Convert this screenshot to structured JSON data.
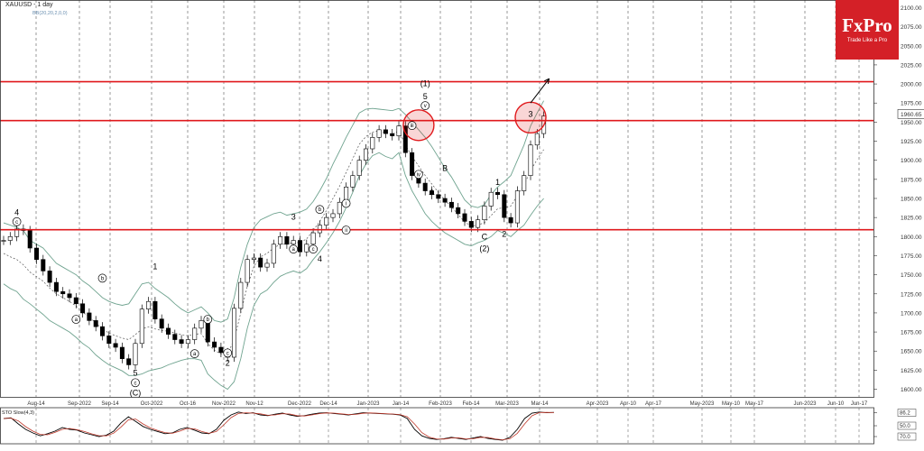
{
  "header": {
    "title": "XAUUSD - 1 day",
    "indicator": "BB(20,20,2,0,0)"
  },
  "brand": {
    "name": "FxPro",
    "tagline": "Trade Like a Pro",
    "color": "#d42027"
  },
  "stochastic": {
    "label": "STO Slow(4,3)",
    "ticks": [
      "86.2",
      "50.0",
      "70.0"
    ]
  },
  "colors": {
    "resistance": "#e0191c",
    "bollinger": "#6fa38f",
    "candle": "#000000",
    "circle": "#e0191c"
  },
  "chart_data": {
    "type": "line",
    "title": "XAUUSD - 1 day",
    "xlabel": "",
    "ylabel": "",
    "ylim": [
      1590,
      2110
    ],
    "price_ticks": [
      2100,
      2075,
      2050,
      2025,
      2000,
      1975,
      1950,
      1925,
      1900,
      1875,
      1850,
      1825,
      1800,
      1775,
      1750,
      1725,
      1700,
      1675,
      1650,
      1625,
      1600
    ],
    "current_price_label": "1960.65",
    "current_price": 1960.65,
    "x_ticks": [
      "Aug-14",
      "Sep-2022",
      "Sep-14",
      "Oct-2022",
      "Oct-16",
      "Nov-2022",
      "Nov-12",
      "Dec-2022",
      "Dec-14",
      "Jan-2023",
      "Jan-14",
      "Feb-2023",
      "Feb-14",
      "Mar-2023",
      "Mar-14",
      "Apr-2023",
      "Apr-10",
      "Apr-17",
      "May-2023",
      "May-10",
      "May-17",
      "Jun-2023",
      "Jun-10",
      "Jun-17"
    ],
    "horizontal_levels": [
      2003,
      1952,
      1809
    ],
    "price_series": [
      1795,
      1800,
      1810,
      1808,
      1785,
      1770,
      1755,
      1740,
      1728,
      1725,
      1720,
      1712,
      1700,
      1690,
      1682,
      1670,
      1660,
      1655,
      1640,
      1632,
      1660,
      1705,
      1715,
      1692,
      1680,
      1672,
      1665,
      1660,
      1665,
      1680,
      1690,
      1662,
      1655,
      1648,
      1642,
      1706,
      1740,
      1770,
      1772,
      1760,
      1765,
      1790,
      1800,
      1790,
      1795,
      1780,
      1790,
      1805,
      1815,
      1825,
      1830,
      1845,
      1865,
      1880,
      1900,
      1915,
      1930,
      1940,
      1935,
      1932,
      1945,
      1910,
      1880,
      1870,
      1860,
      1855,
      1850,
      1845,
      1838,
      1830,
      1820,
      1812,
      1822,
      1840,
      1858,
      1855,
      1825,
      1818,
      1860,
      1880,
      1920,
      1935,
      1958
    ],
    "bollinger_upper": [
      1818,
      1815,
      1812,
      1808,
      1795,
      1790,
      1785,
      1775,
      1765,
      1760,
      1755,
      1750,
      1742,
      1736,
      1728,
      1720,
      1715,
      1712,
      1710,
      1712,
      1725,
      1738,
      1740,
      1732,
      1726,
      1720,
      1712,
      1705,
      1700,
      1704,
      1708,
      1700,
      1690,
      1688,
      1692,
      1720,
      1760,
      1790,
      1812,
      1822,
      1826,
      1830,
      1832,
      1828,
      1830,
      1832,
      1836,
      1846,
      1860,
      1876,
      1895,
      1912,
      1930,
      1946,
      1962,
      1967,
      1968,
      1967,
      1966,
      1965,
      1968,
      1960,
      1950,
      1940,
      1930,
      1918,
      1904,
      1890,
      1878,
      1863,
      1848,
      1840,
      1838,
      1842,
      1855,
      1865,
      1872,
      1880,
      1900,
      1920,
      1945,
      1962,
      1978
    ],
    "bollinger_lower": [
      1738,
      1732,
      1728,
      1718,
      1712,
      1705,
      1698,
      1690,
      1685,
      1680,
      1675,
      1668,
      1660,
      1654,
      1645,
      1638,
      1632,
      1628,
      1624,
      1618,
      1618,
      1620,
      1624,
      1626,
      1628,
      1632,
      1635,
      1638,
      1640,
      1640,
      1638,
      1620,
      1612,
      1605,
      1600,
      1610,
      1640,
      1680,
      1710,
      1725,
      1730,
      1740,
      1748,
      1752,
      1755,
      1752,
      1758,
      1770,
      1780,
      1792,
      1805,
      1820,
      1838,
      1858,
      1880,
      1895,
      1906,
      1910,
      1905,
      1902,
      1910,
      1880,
      1860,
      1845,
      1830,
      1820,
      1812,
      1805,
      1800,
      1795,
      1790,
      1788,
      1792,
      1795,
      1800,
      1808,
      1804,
      1800,
      1808,
      1815,
      1828,
      1840,
      1850
    ],
    "stochastic_series": [
      70,
      72,
      55,
      40,
      30,
      22,
      28,
      35,
      45,
      40,
      38,
      30,
      25,
      20,
      24,
      35,
      58,
      75,
      62,
      48,
      40,
      34,
      28,
      30,
      40,
      45,
      38,
      30,
      28,
      40,
      65,
      80,
      88,
      84,
      86,
      80,
      78,
      82,
      85,
      80,
      76,
      78,
      82,
      85,
      86,
      84,
      82,
      80,
      83,
      86,
      85,
      84,
      83,
      82,
      80,
      70,
      40,
      22,
      15,
      12,
      14,
      18,
      15,
      12,
      16,
      20,
      15,
      12,
      10,
      18,
      40,
      70,
      85,
      88,
      86,
      87
    ],
    "annotations": [
      {
        "text": "4",
        "x": 2,
        "y": 1828
      },
      {
        "text": "c",
        "x": 2,
        "y": 1816
      },
      {
        "text": "a",
        "x": 11,
        "y": 1688
      },
      {
        "text": "b",
        "x": 15,
        "y": 1742
      },
      {
        "text": "1",
        "x": 23,
        "y": 1757
      },
      {
        "text": "5",
        "x": 20,
        "y": 1618
      },
      {
        "text": "c",
        "x": 20,
        "y": 1605
      },
      {
        "text": "(C)",
        "x": 20,
        "y": 1592
      },
      {
        "text": "a",
        "x": 29,
        "y": 1643
      },
      {
        "text": "b",
        "x": 31,
        "y": 1688
      },
      {
        "text": "c",
        "x": 34,
        "y": 1644
      },
      {
        "text": "2",
        "x": 34,
        "y": 1631
      },
      {
        "text": "3",
        "x": 44,
        "y": 1822
      },
      {
        "text": "b",
        "x": 48,
        "y": 1832
      },
      {
        "text": "a",
        "x": 44,
        "y": 1780
      },
      {
        "text": "c",
        "x": 47,
        "y": 1780
      },
      {
        "text": "4",
        "x": 48,
        "y": 1767
      },
      {
        "text": "i",
        "x": 52,
        "y": 1840
      },
      {
        "text": "ii",
        "x": 52,
        "y": 1805
      },
      {
        "text": "iii",
        "x": 62,
        "y": 1942
      },
      {
        "text": "iv",
        "x": 63,
        "y": 1878
      },
      {
        "text": "v",
        "x": 64,
        "y": 1968
      },
      {
        "text": "5",
        "x": 64,
        "y": 1980
      },
      {
        "text": "(1)",
        "x": 64,
        "y": 1997
      },
      {
        "text": "A",
        "x": 65,
        "y": 1855
      },
      {
        "text": "B",
        "x": 67,
        "y": 1886
      },
      {
        "text": "C",
        "x": 73,
        "y": 1796
      },
      {
        "text": "(2)",
        "x": 73,
        "y": 1781
      },
      {
        "text": "1",
        "x": 75,
        "y": 1868
      },
      {
        "text": "2",
        "x": 76,
        "y": 1800
      },
      {
        "text": "3",
        "x": 80,
        "y": 1957
      }
    ],
    "highlight_circles": [
      {
        "x": 63,
        "y": 1946
      },
      {
        "x": 80,
        "y": 1956
      }
    ],
    "target_arrow": {
      "from": [
        80,
        1975
      ],
      "to": [
        82,
        2007
      ]
    },
    "grid": true
  }
}
